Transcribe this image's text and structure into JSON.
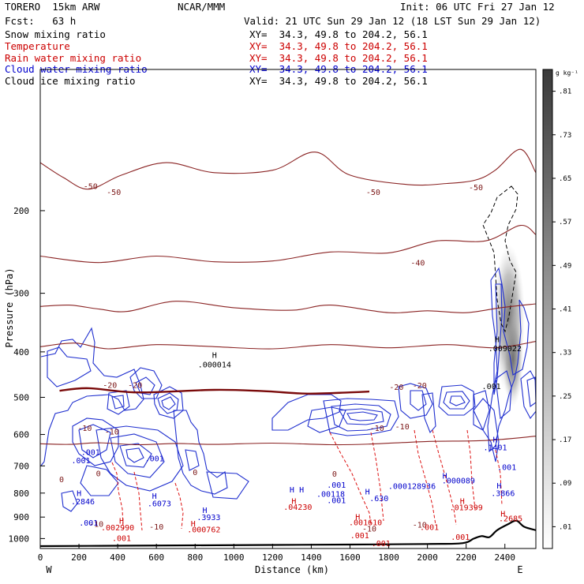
{
  "header": {
    "model": "TORERO  15km ARW",
    "center": "NCAR/MMM",
    "init": "Init: 06 UTC Fri 27 Jan 12",
    "fcst": "Fcst:   63 h",
    "valid": "Valid: 21 UTC Sun 29 Jan 12 (18 LST Sun 29 Jan 12)"
  },
  "fields": [
    {
      "name": "Snow mixing ratio",
      "xy": "XY=  34.3, 49.8 to 204.2, 56.1",
      "color": "#000000"
    },
    {
      "name": "Temperature",
      "xy": "XY=  34.3, 49.8 to 204.2, 56.1",
      "color": "#cc0000"
    },
    {
      "name": "Rain water mixing ratio",
      "xy": "XY=  34.3, 49.8 to 204.2, 56.1",
      "color": "#cc0000"
    },
    {
      "name": "Cloud water mixing ratio",
      "xy": "XY=  34.3, 49.8 to 204.2, 56.1",
      "color": "#0000cc"
    },
    {
      "name": "Cloud ice mixing ratio",
      "xy": "XY=  34.3, 49.8 to 204.2, 56.1",
      "color": "#000000"
    }
  ],
  "colorbar": {
    "unit": "g kg⁻¹",
    "labels": [
      ".81",
      ".73",
      ".65",
      ".57",
      ".49",
      ".41",
      ".33",
      ".25",
      ".17",
      ".09",
      ".01"
    ]
  },
  "chart_data": {
    "type": "contour",
    "xlabel": "Distance (km)",
    "ylabel": "Pressure (hPa)",
    "xlim": [
      0,
      2560
    ],
    "ylim": [
      1050,
      100
    ],
    "y_scale": "log",
    "xticks": [
      0,
      200,
      400,
      600,
      800,
      1000,
      1200,
      1400,
      1600,
      1800,
      2000,
      2200,
      2400
    ],
    "yticks": [
      200,
      300,
      400,
      500,
      600,
      700,
      800,
      900,
      1000
    ],
    "x_end_labels": {
      "left": "W",
      "right": "E"
    },
    "temperature_isotherms_C": [
      {
        "value": -50,
        "points": [
          [
            0,
            158
          ],
          [
            120,
            170
          ],
          [
            250,
            180
          ],
          [
            420,
            168
          ],
          [
            650,
            158
          ],
          [
            900,
            166
          ],
          [
            1200,
            164
          ],
          [
            1420,
            150
          ],
          [
            1600,
            168
          ],
          [
            1900,
            176
          ],
          [
            2100,
            175
          ],
          [
            2250,
            172
          ],
          [
            2350,
            164
          ],
          [
            2480,
            148
          ],
          [
            2560,
            166
          ]
        ]
      },
      {
        "value": -40,
        "points": [
          [
            0,
            250
          ],
          [
            300,
            258
          ],
          [
            600,
            250
          ],
          [
            900,
            257
          ],
          [
            1200,
            256
          ],
          [
            1500,
            245
          ],
          [
            1800,
            246
          ],
          [
            2050,
            232
          ],
          [
            2300,
            232
          ],
          [
            2480,
            215
          ],
          [
            2560,
            225
          ]
        ]
      },
      {
        "value": -20,
        "points": [
          [
            0,
            320
          ],
          [
            150,
            318
          ],
          [
            300,
            324
          ],
          [
            450,
            328
          ],
          [
            700,
            312
          ],
          [
            1000,
            322
          ],
          [
            1300,
            326
          ],
          [
            1500,
            318
          ],
          [
            1800,
            330
          ],
          [
            2000,
            327
          ],
          [
            2200,
            330
          ],
          [
            2380,
            322
          ],
          [
            2560,
            316
          ]
        ]
      },
      {
        "value": -10,
        "points": [
          [
            0,
            390
          ],
          [
            180,
            383
          ],
          [
            350,
            394
          ],
          [
            600,
            386
          ],
          [
            900,
            390
          ],
          [
            1200,
            394
          ],
          [
            1500,
            386
          ],
          [
            1800,
            392
          ],
          [
            2100,
            386
          ],
          [
            2350,
            392
          ],
          [
            2560,
            380
          ]
        ]
      },
      {
        "value": 0,
        "points": [
          [
            100,
            484
          ],
          [
            250,
            478
          ],
          [
            500,
            488
          ],
          [
            900,
            482
          ],
          [
            1150,
            485
          ],
          [
            1380,
            491
          ],
          [
            1600,
            488
          ],
          [
            1700,
            486
          ]
        ]
      },
      {
        "value": 10,
        "points": [
          [
            0,
            628
          ],
          [
            150,
            630
          ],
          [
            300,
            625
          ],
          [
            500,
            631
          ],
          [
            700,
            627
          ],
          [
            900,
            630
          ],
          [
            1200,
            626
          ],
          [
            1500,
            631
          ],
          [
            1700,
            629
          ],
          [
            2000,
            621
          ],
          [
            2300,
            618
          ],
          [
            2560,
            605
          ]
        ]
      }
    ],
    "labels": [
      {
        "text": "H",
        "x": 900,
        "p": 412,
        "color": "#000000"
      },
      {
        "text": ".000014",
        "x": 900,
        "p": 432,
        "color": "#000000"
      },
      {
        "text": "H",
        "x": 2360,
        "p": 381,
        "color": "#000000"
      },
      {
        "text": ".009022",
        "x": 2400,
        "p": 399,
        "color": "#000000"
      },
      {
        "text": ".001",
        "x": 2330,
        "p": 480,
        "color": "#000000"
      },
      {
        "text": "-50",
        "x": 260,
        "p": 180,
        "color": "#7a1515"
      },
      {
        "text": "-50",
        "x": 380,
        "p": 185,
        "color": "#7a1515"
      },
      {
        "text": "-50",
        "x": 1720,
        "p": 185,
        "color": "#7a1515"
      },
      {
        "text": "-50",
        "x": 2250,
        "p": 181,
        "color": "#7a1515"
      },
      {
        "text": "-40",
        "x": 1950,
        "p": 262,
        "color": "#7a1515"
      },
      {
        "text": "-20",
        "x": 360,
        "p": 477,
        "color": "#7a1515"
      },
      {
        "text": "-20",
        "x": 490,
        "p": 477,
        "color": "#7a1515"
      },
      {
        "text": "-20",
        "x": 1840,
        "p": 482,
        "color": "#7a1515"
      },
      {
        "text": "-20",
        "x": 1960,
        "p": 478,
        "color": "#7a1515"
      },
      {
        "text": "-10",
        "x": 230,
        "p": 590,
        "color": "#7a1515"
      },
      {
        "text": "-10",
        "x": 370,
        "p": 600,
        "color": "#7a1515"
      },
      {
        "text": "-10",
        "x": 1740,
        "p": 590,
        "color": "#7a1515"
      },
      {
        "text": "-10",
        "x": 1870,
        "p": 585,
        "color": "#7a1515"
      },
      {
        "text": "0",
        "x": 110,
        "p": 759,
        "color": "#7a1515"
      },
      {
        "text": "0",
        "x": 300,
        "p": 737,
        "color": "#7a1515"
      },
      {
        "text": "0",
        "x": 800,
        "p": 732,
        "color": "#7a1515"
      },
      {
        "text": "0",
        "x": 1520,
        "p": 738,
        "color": "#7a1515"
      },
      {
        "text": "-10",
        "x": 290,
        "p": 943,
        "color": "#7a1515"
      },
      {
        "text": "-10",
        "x": 600,
        "p": 957,
        "color": "#7a1515"
      },
      {
        "text": "-10",
        "x": 1700,
        "p": 966,
        "color": "#7a1515"
      },
      {
        "text": "-10",
        "x": 1960,
        "p": 947,
        "color": "#7a1515"
      },
      {
        "text": ".001",
        "x": 260,
        "p": 663,
        "color": "#0000cc"
      },
      {
        "text": ".001",
        "x": 210,
        "p": 691,
        "color": "#0000cc"
      },
      {
        "text": ".001",
        "x": 590,
        "p": 684,
        "color": "#0000cc"
      },
      {
        "text": "H",
        "x": 200,
        "p": 812,
        "color": "#0000cc"
      },
      {
        "text": ".2846",
        "x": 220,
        "p": 845,
        "color": "#0000cc"
      },
      {
        "text": "H",
        "x": 590,
        "p": 822,
        "color": "#0000cc"
      },
      {
        "text": ".6073",
        "x": 615,
        "p": 853,
        "color": "#0000cc"
      },
      {
        "text": "H",
        "x": 850,
        "p": 882,
        "color": "#0000cc"
      },
      {
        "text": ".3933",
        "x": 870,
        "p": 913,
        "color": "#0000cc"
      },
      {
        "text": ".001",
        "x": 250,
        "p": 939,
        "color": "#0000cc"
      },
      {
        "text": "H",
        "x": 1300,
        "p": 797,
        "color": "#0000cc"
      },
      {
        "text": "H",
        "x": 1350,
        "p": 797,
        "color": "#0000cc"
      },
      {
        "text": ".001",
        "x": 1530,
        "p": 779,
        "color": "#0000cc"
      },
      {
        "text": ".00118",
        "x": 1500,
        "p": 815,
        "color": "#0000cc"
      },
      {
        "text": "H",
        "x": 1690,
        "p": 805,
        "color": "#0000cc"
      },
      {
        "text": ".001",
        "x": 1530,
        "p": 840,
        "color": "#0000cc"
      },
      {
        "text": ".630",
        "x": 1750,
        "p": 832,
        "color": "#0000cc"
      },
      {
        "text": ".000128936",
        "x": 1920,
        "p": 784,
        "color": "#0000cc"
      },
      {
        "text": "H",
        "x": 2090,
        "p": 745,
        "color": "#0000cc"
      },
      {
        "text": ".000089",
        "x": 2160,
        "p": 763,
        "color": "#0000cc"
      },
      {
        "text": "H",
        "x": 2350,
        "p": 624,
        "color": "#0000cc"
      },
      {
        "text": ".1401",
        "x": 2350,
        "p": 648,
        "color": "#0000cc"
      },
      {
        "text": ".001",
        "x": 2410,
        "p": 714,
        "color": "#0000cc"
      },
      {
        "text": "H",
        "x": 2370,
        "p": 782,
        "color": "#0000cc"
      },
      {
        "text": ".3866",
        "x": 2390,
        "p": 812,
        "color": "#0000cc"
      },
      {
        "text": "H",
        "x": 1310,
        "p": 844,
        "color": "#cc0000"
      },
      {
        "text": ".04230",
        "x": 1330,
        "p": 868,
        "color": "#cc0000"
      },
      {
        "text": "H",
        "x": 1640,
        "p": 912,
        "color": "#cc0000"
      },
      {
        "text": ".001610",
        "x": 1680,
        "p": 937,
        "color": "#cc0000"
      },
      {
        "text": "H",
        "x": 2180,
        "p": 844,
        "color": "#cc0000"
      },
      {
        "text": ".019399",
        "x": 2200,
        "p": 870,
        "color": "#cc0000"
      },
      {
        "text": ".001",
        "x": 2010,
        "p": 959,
        "color": "#cc0000"
      },
      {
        "text": "H",
        "x": 790,
        "p": 942,
        "color": "#cc0000"
      },
      {
        "text": ".000762",
        "x": 845,
        "p": 970,
        "color": "#cc0000"
      },
      {
        "text": "H",
        "x": 420,
        "p": 929,
        "color": "#cc0000"
      },
      {
        "text": ".002990",
        "x": 400,
        "p": 960,
        "color": "#cc0000"
      },
      {
        "text": ".001",
        "x": 420,
        "p": 1012,
        "color": "#cc0000"
      },
      {
        "text": ".001",
        "x": 1650,
        "p": 998,
        "color": "#cc0000"
      },
      {
        "text": ".001",
        "x": 1760,
        "p": 1037,
        "color": "#cc0000"
      },
      {
        "text": ".001",
        "x": 2170,
        "p": 1006,
        "color": "#cc0000"
      },
      {
        "text": "H",
        "x": 2390,
        "p": 897,
        "color": "#cc0000"
      },
      {
        "text": ".2685",
        "x": 2430,
        "p": 918,
        "color": "#cc0000"
      }
    ],
    "terrain_hPa": [
      [
        0,
        1038
      ],
      [
        400,
        1036
      ],
      [
        800,
        1034
      ],
      [
        1200,
        1032
      ],
      [
        1600,
        1030
      ],
      [
        2000,
        1027
      ],
      [
        2180,
        1023
      ],
      [
        2240,
        1000
      ],
      [
        2280,
        988
      ],
      [
        2320,
        993
      ],
      [
        2360,
        960
      ],
      [
        2420,
        930
      ],
      [
        2460,
        916
      ],
      [
        2500,
        944
      ],
      [
        2560,
        960
      ]
    ]
  }
}
